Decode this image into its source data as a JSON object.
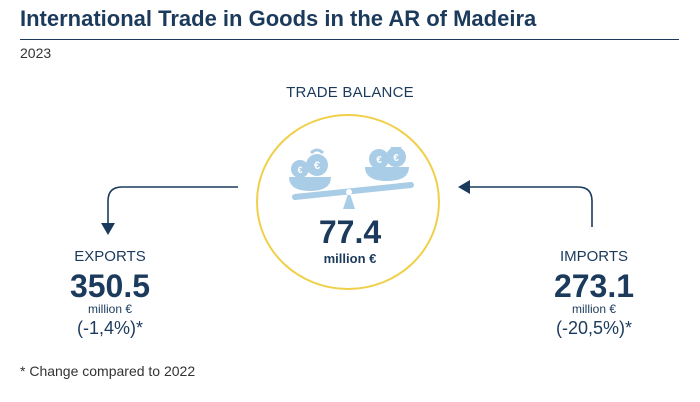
{
  "header": {
    "title": "International Trade in Goods in the AR of Madeira",
    "year": "2023"
  },
  "trade_balance": {
    "label": "TRADE BALANCE",
    "value": "77.4",
    "unit": "million €",
    "icon": "balance-scale-money-bags-icon"
  },
  "exports": {
    "label": "EXPORTS",
    "value": "350.5",
    "unit": "million €",
    "change": "(-1,4%)*"
  },
  "imports": {
    "label": "IMPORTS",
    "value": "273.1",
    "unit": "million €",
    "change": "(-20,5%)*"
  },
  "footnote": "* Change compared to 2022",
  "colors": {
    "primary": "#1b3a5c",
    "circle_border": "#f0d04a",
    "icon_fill": "#a9cde6",
    "text_gray": "#333333"
  }
}
